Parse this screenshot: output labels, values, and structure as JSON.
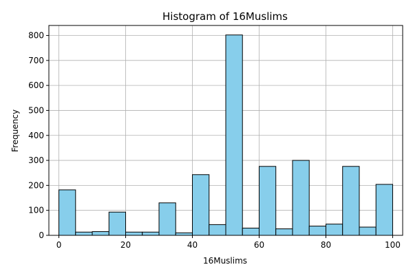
{
  "chart_data": {
    "type": "bar",
    "title": "Histogram of 16Muslims",
    "xlabel": "16Muslims",
    "ylabel": "Frequency",
    "xlim": [
      -3,
      103
    ],
    "ylim": [
      0,
      840
    ],
    "xticks": [
      0,
      20,
      40,
      60,
      80,
      100
    ],
    "yticks": [
      0,
      100,
      200,
      300,
      400,
      500,
      600,
      700,
      800
    ],
    "grid": true,
    "bar_color": "#87ceeb",
    "edge_color": "#000000",
    "bins": [
      {
        "start": 0,
        "end": 5,
        "value": 182
      },
      {
        "start": 5,
        "end": 10,
        "value": 13
      },
      {
        "start": 10,
        "end": 15,
        "value": 15
      },
      {
        "start": 15,
        "end": 20,
        "value": 93
      },
      {
        "start": 20,
        "end": 25,
        "value": 13
      },
      {
        "start": 25,
        "end": 30,
        "value": 13
      },
      {
        "start": 30,
        "end": 35,
        "value": 130
      },
      {
        "start": 35,
        "end": 40,
        "value": 10
      },
      {
        "start": 40,
        "end": 45,
        "value": 243
      },
      {
        "start": 45,
        "end": 50,
        "value": 43
      },
      {
        "start": 50,
        "end": 55,
        "value": 802
      },
      {
        "start": 55,
        "end": 60,
        "value": 29
      },
      {
        "start": 60,
        "end": 65,
        "value": 276
      },
      {
        "start": 65,
        "end": 70,
        "value": 26
      },
      {
        "start": 70,
        "end": 75,
        "value": 300
      },
      {
        "start": 75,
        "end": 80,
        "value": 37
      },
      {
        "start": 80,
        "end": 85,
        "value": 45
      },
      {
        "start": 85,
        "end": 90,
        "value": 276
      },
      {
        "start": 90,
        "end": 95,
        "value": 33
      },
      {
        "start": 95,
        "end": 100,
        "value": 204
      }
    ]
  }
}
